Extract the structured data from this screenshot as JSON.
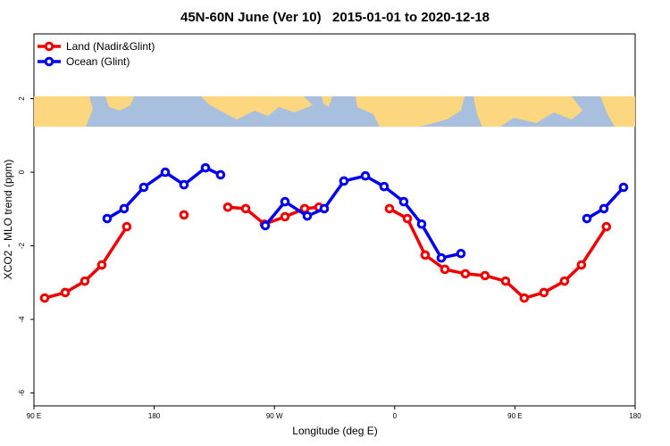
{
  "chart_data": {
    "type": "line",
    "title": "45N-60N June (Ver 10)   2015-01-01 to 2020-12-18",
    "x_label": "Longitude (deg E)",
    "y_label": "XCO2 - MLO trend (ppm)",
    "xlim": [
      90,
      540
    ],
    "ylim": [
      -6.35,
      3.76
    ],
    "xticks": [
      {
        "value": 90,
        "label": "90 E"
      },
      180,
      {
        "value": 270,
        "label": "90 W"
      },
      {
        "value": 360,
        "label": "0"
      },
      {
        "value": 450,
        "label": "90 E"
      },
      {
        "value": 540,
        "label": "180"
      }
    ],
    "yticks": [
      2,
      0,
      -2,
      -4,
      -6
    ],
    "legend": "top-left",
    "series": [
      {
        "name": "Land (Nadir&Glint)",
        "color": "#ee0000",
        "x": [
          98.0,
          113.4,
          128.1,
          140.8,
          159.5,
          null,
          202.3,
          null,
          235.1,
          248.5,
          262.5,
          277.9,
          292.6,
          303.3,
          null,
          356.1,
          369.5,
          382.8,
          397.6,
          412.9,
          427.6,
          443.0,
          457.0,
          471.7,
          487.1,
          499.8,
          518.5
        ],
        "values": [
          -3.42,
          -3.27,
          -2.96,
          -2.52,
          -1.48,
          null,
          -1.16,
          null,
          -0.95,
          -0.99,
          -1.41,
          -1.21,
          -0.99,
          -0.95,
          null,
          -0.99,
          -1.26,
          -2.25,
          -2.64,
          -2.76,
          -2.81,
          -2.96,
          -3.42,
          -3.27,
          -2.96,
          -2.52,
          -1.48
        ]
      },
      {
        "name": "Ocean (Glint)",
        "color": "#0000ee",
        "x": [
          144.8,
          157.5,
          172.2,
          188.3,
          202.3,
          218.4,
          229.7,
          null,
          263.2,
          277.9,
          294.6,
          307.3,
          322.0,
          338.1,
          352.1,
          366.8,
          380.2,
          394.9,
          409.6,
          null,
          503.9,
          516.6,
          531.3
        ],
        "values": [
          -1.26,
          -0.99,
          -0.41,
          0,
          -0.34,
          0.12,
          -0.07,
          null,
          -1.45,
          -0.8,
          -1.19,
          -0.99,
          -0.24,
          -0.1,
          -0.39,
          -0.8,
          -1.41,
          -2.33,
          -2.21,
          null,
          -1.26,
          -0.99,
          -0.41
        ]
      }
    ]
  }
}
